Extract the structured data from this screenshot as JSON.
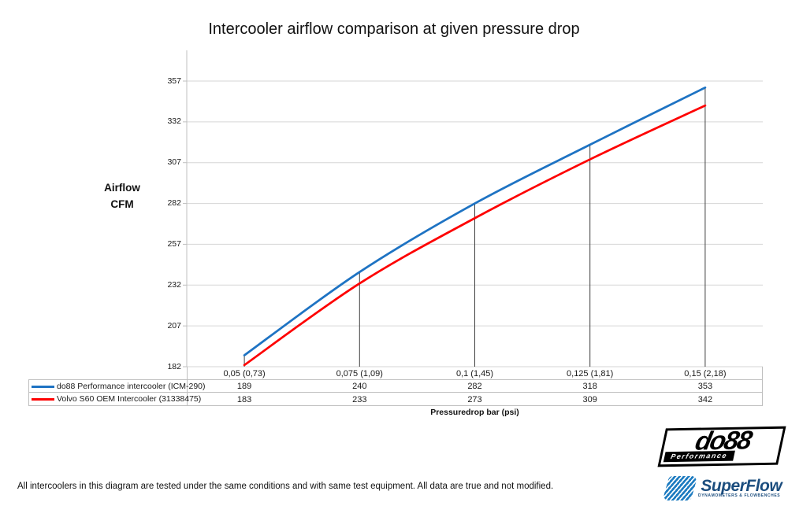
{
  "title": "Intercooler airflow comparison at given pressure drop",
  "y_axis": {
    "label_line1": "Airflow",
    "label_line2": "CFM"
  },
  "x_axis": {
    "label": "Pressuredrop bar (psi)"
  },
  "footnote": "All intercoolers in this diagram are tested under the same conditions and with same test equipment. All data are true and not modified.",
  "logos": {
    "do88": {
      "word": "do88",
      "sub": "Performance"
    },
    "superflow": {
      "word": "SuperFlow",
      "sub": "DYNAMOMETERS & FLOWBENCHES"
    }
  },
  "colors": {
    "series_blue": "#1e73c3",
    "series_red": "#fe0000",
    "gridline": "#d6d6d6",
    "axis": "#bfbfbf",
    "drop_line": "#404040",
    "table_border": "#bfbfbf"
  },
  "chart_data": {
    "type": "line",
    "smooth": true,
    "grid": "horizontal",
    "legend_position": "data-table-left",
    "drop_lines_to_axis": true,
    "title": "Intercooler airflow comparison at given pressure drop",
    "xlabel": "Pressuredrop bar (psi)",
    "ylabel": "Airflow CFM",
    "categories": [
      "0,05 (0,73)",
      "0,075 (1,09)",
      "0,1 (1,45)",
      "0,125 (1,81)",
      "0,15 (2,18)"
    ],
    "series": [
      {
        "name": "do88 Performance intercooler (ICM-290)",
        "color": "#1e73c3",
        "values": [
          189,
          240,
          282,
          318,
          353
        ]
      },
      {
        "name": "Volvo S60 OEM Intercooler (31338475)",
        "color": "#fe0000",
        "values": [
          183,
          233,
          273,
          309,
          342
        ]
      }
    ],
    "y_ticks": [
      182,
      207,
      232,
      257,
      282,
      307,
      332,
      357
    ],
    "ylim": [
      182,
      377
    ]
  }
}
